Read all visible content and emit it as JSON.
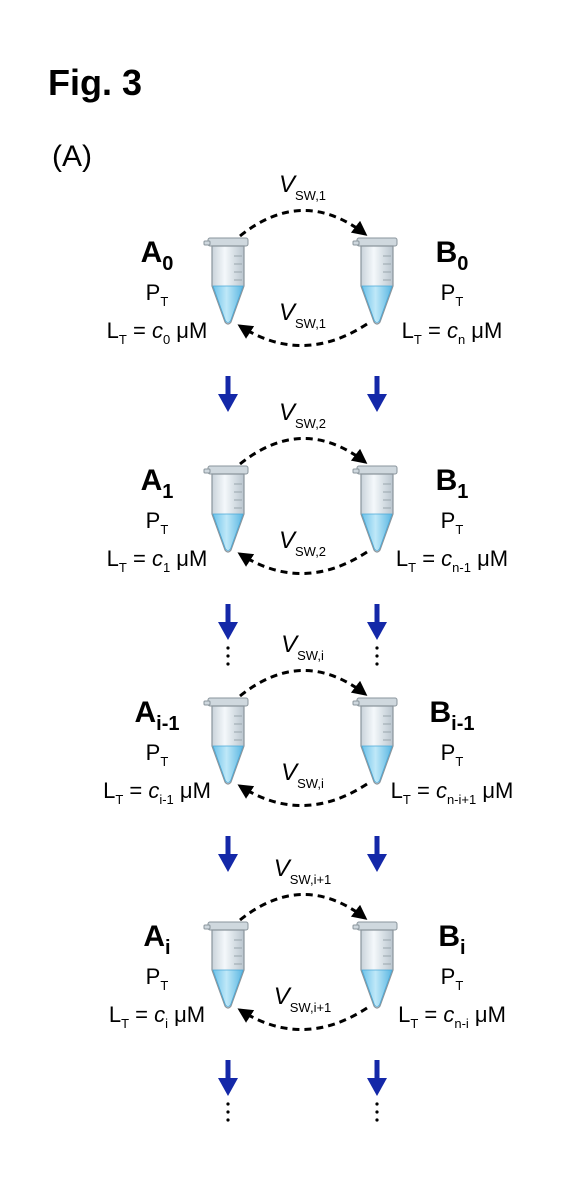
{
  "figure": {
    "title": "Fig. 3",
    "panel": "(A)"
  },
  "colors": {
    "arrow": "#1428a8",
    "tube_liquid": "#8fd3f0",
    "tube_body": "#e6edf2",
    "dash": "#000000"
  },
  "stages": [
    {
      "left": {
        "letter": "A",
        "sub": "0",
        "protein": "P",
        "protein_sub": "T",
        "ligand": "L",
        "ligand_sub": "T",
        "eq": " = ",
        "c": "c",
        "c_sub": "0",
        "unit": " μM"
      },
      "right": {
        "letter": "B",
        "sub": "0",
        "protein": "P",
        "protein_sub": "T",
        "ligand": "L",
        "ligand_sub": "T",
        "eq": " = ",
        "c": "c",
        "c_sub": "n",
        "unit": " μM"
      },
      "v_top": {
        "v": "V",
        "sub": "SW,1"
      },
      "v_bottom": {
        "v": "V",
        "sub": "SW,1"
      },
      "dots_after": false
    },
    {
      "left": {
        "letter": "A",
        "sub": "1",
        "protein": "P",
        "protein_sub": "T",
        "ligand": "L",
        "ligand_sub": "T",
        "eq": " = ",
        "c": "c",
        "c_sub": "1",
        "unit": " μM"
      },
      "right": {
        "letter": "B",
        "sub": "1",
        "protein": "P",
        "protein_sub": "T",
        "ligand": "L",
        "ligand_sub": "T",
        "eq": " = ",
        "c": "c",
        "c_sub": "n-1",
        "unit": " μM"
      },
      "v_top": {
        "v": "V",
        "sub": "SW,2"
      },
      "v_bottom": {
        "v": "V",
        "sub": "SW,2"
      },
      "dots_after": true
    },
    {
      "left": {
        "letter": "A",
        "sub": "i-1",
        "protein": "P",
        "protein_sub": "T",
        "ligand": "L",
        "ligand_sub": "T",
        "eq": " = ",
        "c": "c",
        "c_sub": "i-1",
        "unit": " μM"
      },
      "right": {
        "letter": "B",
        "sub": "i-1",
        "protein": "P",
        "protein_sub": "T",
        "ligand": "L",
        "ligand_sub": "T",
        "eq": " = ",
        "c": "c",
        "c_sub": "n-i+1",
        "unit": " μM"
      },
      "v_top": {
        "v": "V",
        "sub": "SW,i"
      },
      "v_bottom": {
        "v": "V",
        "sub": "SW,i"
      },
      "dots_after": false
    },
    {
      "left": {
        "letter": "A",
        "sub": "i",
        "protein": "P",
        "protein_sub": "T",
        "ligand": "L",
        "ligand_sub": "T",
        "eq": " = ",
        "c": "c",
        "c_sub": "i",
        "unit": " μM"
      },
      "right": {
        "letter": "B",
        "sub": "i",
        "protein": "P",
        "protein_sub": "T",
        "ligand": "L",
        "ligand_sub": "T",
        "eq": " = ",
        "c": "c",
        "c_sub": "n-i",
        "unit": " μM"
      },
      "v_top": {
        "v": "V",
        "sub": "SW,i+1"
      },
      "v_bottom": {
        "v": "V",
        "sub": "SW,i+1"
      },
      "dots_after": true
    }
  ]
}
